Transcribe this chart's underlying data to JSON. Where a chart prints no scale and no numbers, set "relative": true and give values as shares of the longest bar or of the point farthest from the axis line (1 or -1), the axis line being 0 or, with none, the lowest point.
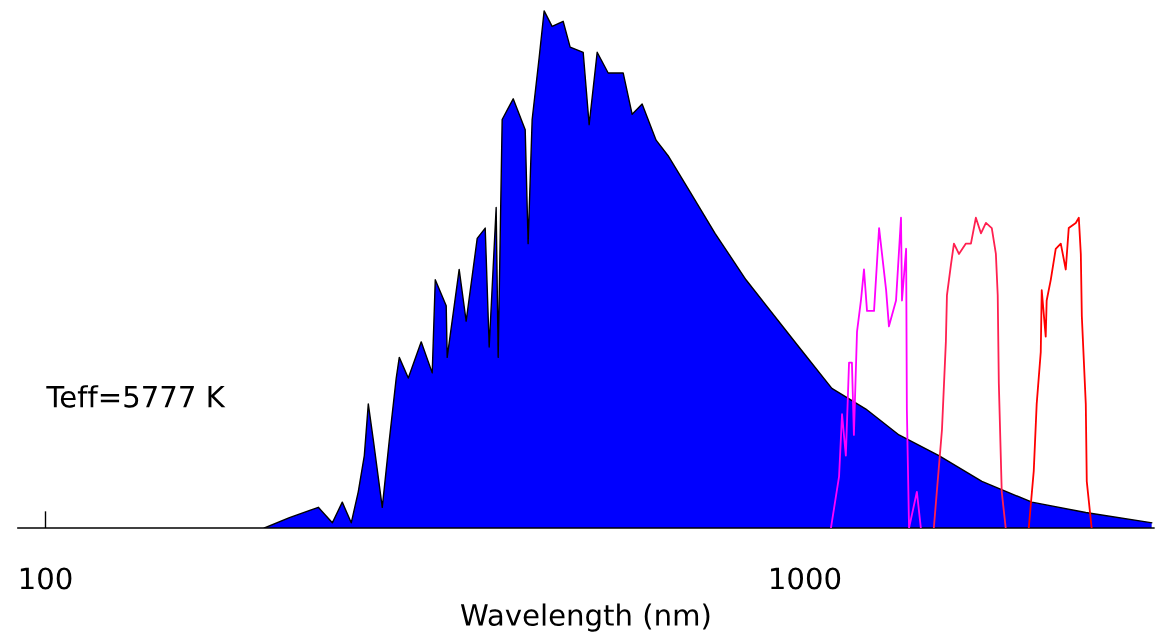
{
  "chart_data": {
    "type": "area",
    "relative": true,
    "xlabel": "Wavelength (nm)",
    "log": "x",
    "xlim": [
      92,
      2880
    ],
    "xticks": [
      100,
      1000
    ],
    "tick_labels": "x",
    "grid": false,
    "legend": false,
    "annotations": [
      "Teff=5777 K"
    ],
    "series": [
      {
        "color": "#0000ff",
        "x": [
          194.2,
          209.5,
          228.7,
          238.6,
          245.9,
          252.7,
          258.1,
          262.9,
          266.1,
          270.2,
          277.6,
          283.6,
          289.6,
          292.3,
          300.4,
          312.4,
          323.0,
          326.0,
          337.0,
          338.0,
          350.5,
          358.0,
          370.2,
          379.3,
          383.9,
          392.1,
          394.5,
          399.3,
          412.9,
          428.2,
          432.0,
          437.3,
          446.7,
          453.5,
          464.6,
          480.4,
          490.7,
          510.5,
          519.8,
          532.6,
          550.7,
          576.3,
          592.2,
          610.4,
          636.8,
          660.4,
          705.9,
          761.4,
          836.3,
          981.9,
          1085,
          1203,
          1330,
          1501,
          1710,
          1990,
          2343,
          2861
        ],
        "values": [
          0.0,
          0.02,
          0.04,
          0.01,
          0.05,
          0.01,
          0.07,
          0.14,
          0.24,
          0.17,
          0.04,
          0.17,
          0.29,
          0.33,
          0.29,
          0.36,
          0.3,
          0.48,
          0.43,
          0.33,
          0.5,
          0.4,
          0.56,
          0.58,
          0.35,
          0.62,
          0.33,
          0.79,
          0.83,
          0.77,
          0.55,
          0.79,
          0.91,
          1.0,
          0.97,
          0.98,
          0.93,
          0.92,
          0.78,
          0.92,
          0.88,
          0.88,
          0.8,
          0.82,
          0.75,
          0.72,
          0.65,
          0.57,
          0.48,
          0.35,
          0.27,
          0.23,
          0.18,
          0.14,
          0.09,
          0.05,
          0.03,
          0.01
        ]
      },
      {
        "type": "line",
        "color": "#ff00ff",
        "x": [
          1082,
          1109,
          1119,
          1132,
          1143,
          1153,
          1160,
          1171,
          1185,
          1196,
          1207,
          1233,
          1252,
          1279,
          1290,
          1318,
          1338,
          1342,
          1359,
          1362,
          1371,
          1404,
          1421
        ],
        "values": [
          0.0,
          0.1,
          0.22,
          0.14,
          0.32,
          0.32,
          0.18,
          0.38,
          0.44,
          0.5,
          0.42,
          0.42,
          0.58,
          0.46,
          0.39,
          0.44,
          0.6,
          0.44,
          0.54,
          0.23,
          0.0,
          0.07,
          0.0
        ]
      },
      {
        "type": "line",
        "color": "#ff2050",
        "x": [
          1478,
          1515,
          1533,
          1538,
          1557,
          1571,
          1595,
          1629,
          1654,
          1679,
          1705,
          1731,
          1762,
          1784,
          1794,
          1800,
          1816,
          1838
        ],
        "values": [
          0,
          0.19,
          0.36,
          0.45,
          0.51,
          0.55,
          0.53,
          0.55,
          0.55,
          0.6,
          0.57,
          0.59,
          0.58,
          0.53,
          0.45,
          0.28,
          0.07,
          0
        ]
      },
      {
        "type": "line",
        "color": "#ff0000",
        "x": [
          1971,
          2001,
          2019,
          2044,
          2050,
          2075,
          2081,
          2107,
          2139,
          2172,
          2205,
          2225,
          2273,
          2294,
          2308,
          2315,
          2343,
          2350,
          2385
        ],
        "values": [
          0,
          0.11,
          0.24,
          0.34,
          0.46,
          0.37,
          0.44,
          0.48,
          0.54,
          0.55,
          0.5,
          0.58,
          0.59,
          0.6,
          0.53,
          0.41,
          0.24,
          0.09,
          0
        ]
      }
    ]
  }
}
